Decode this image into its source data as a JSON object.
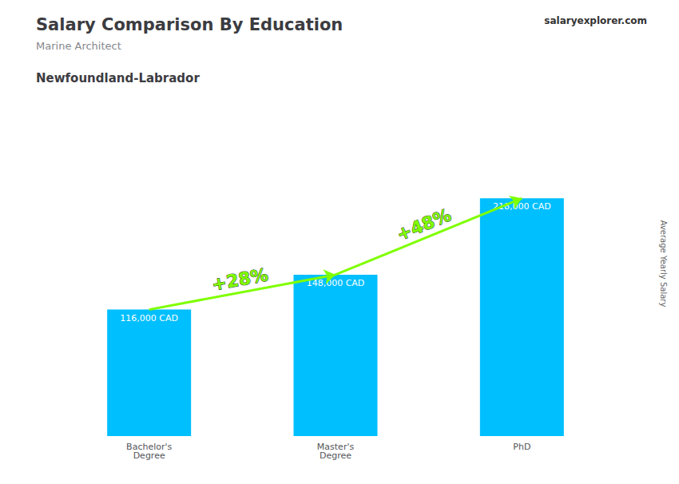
{
  "chart_data": {
    "type": "bar",
    "title": "Salary Comparison By Education",
    "subtitle": "Marine Architect",
    "location": "Newfoundland-Labrador",
    "watermark": "salaryexplorer.com",
    "ylabel": "Average Yearly Salary",
    "categories": [
      "Bachelor's\nDegree",
      "Master's\nDegree",
      "PhD"
    ],
    "values": [
      116000,
      148000,
      218000
    ],
    "value_labels": [
      "116,000 CAD",
      "148,000 CAD",
      "218,000 CAD"
    ],
    "data_labels": true,
    "color": "#00BFFF",
    "ylim": [
      0,
      290000
    ],
    "tick_labels": "x",
    "grid": false,
    "annotations": [
      {
        "text": "+28%",
        "from": "Bachelor's\nDegree",
        "to": "Master's\nDegree",
        "color": "#7FFF00"
      },
      {
        "text": "+48%",
        "from": "Master's\nDegree",
        "to": "PhD",
        "color": "#7FFF00"
      }
    ]
  }
}
